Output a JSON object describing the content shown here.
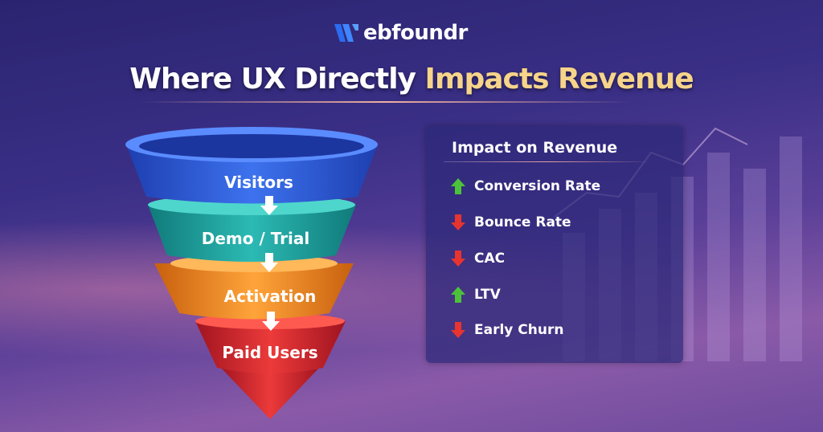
{
  "brand": {
    "logo_text": "Webfoundr",
    "logo_suffix": "ebfoundr"
  },
  "title": {
    "part1": "Where UX Directly ",
    "part2": "Impacts Revenue",
    "highlight_color": "#f6d48a"
  },
  "funnel": {
    "stages": [
      {
        "label": "Visitors",
        "color": "#2f5fd8"
      },
      {
        "label": "Demo / Trial",
        "color": "#1fa3a0"
      },
      {
        "label": "Activation",
        "color": "#f08a1c"
      },
      {
        "label": "Paid Users",
        "color": "#d8262e"
      }
    ]
  },
  "panel": {
    "title": "Impact on Revenue",
    "items": [
      {
        "label": "Conversion Rate",
        "direction": "up",
        "icon": "arrow-up-icon",
        "color": "#4cc23a"
      },
      {
        "label": "Bounce Rate",
        "direction": "down",
        "icon": "arrow-down-icon",
        "color": "#e8342e"
      },
      {
        "label": "CAC",
        "direction": "down",
        "icon": "arrow-down-icon",
        "color": "#e8342e"
      },
      {
        "label": "LTV",
        "direction": "up",
        "icon": "arrow-up-icon",
        "color": "#4cc23a"
      },
      {
        "label": "Early Churn",
        "direction": "down",
        "icon": "arrow-down-icon",
        "color": "#e8342e"
      }
    ]
  }
}
